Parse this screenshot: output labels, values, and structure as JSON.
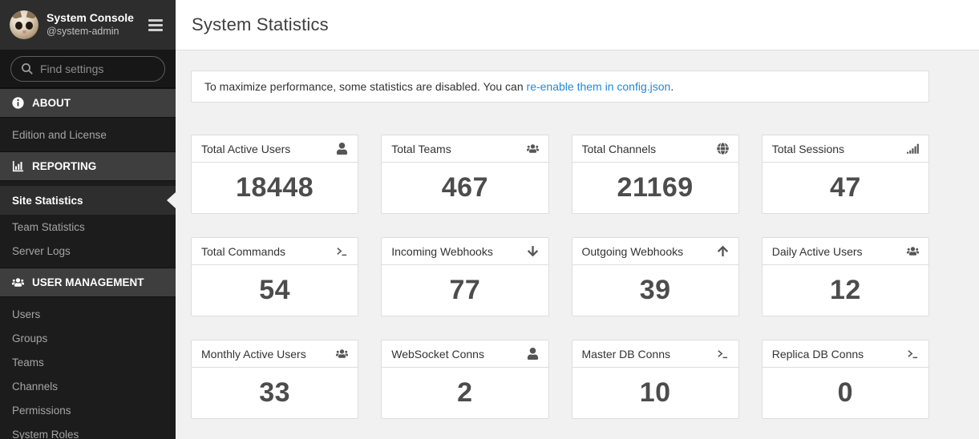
{
  "sidebar": {
    "title": "System Console",
    "subtitle": "@system-admin",
    "search_placeholder": "Find settings",
    "sections": [
      {
        "label": "ABOUT",
        "icon": "info-icon",
        "items": [
          {
            "label": "Edition and License",
            "active": false
          }
        ]
      },
      {
        "label": "REPORTING",
        "icon": "bar-chart-icon",
        "items": [
          {
            "label": "Site Statistics",
            "active": true
          },
          {
            "label": "Team Statistics",
            "active": false
          },
          {
            "label": "Server Logs",
            "active": false
          }
        ]
      },
      {
        "label": "USER MANAGEMENT",
        "icon": "users-icon",
        "items": [
          {
            "label": "Users",
            "active": false
          },
          {
            "label": "Groups",
            "active": false
          },
          {
            "label": "Teams",
            "active": false
          },
          {
            "label": "Channels",
            "active": false
          },
          {
            "label": "Permissions",
            "active": false
          },
          {
            "label": "System Roles",
            "active": false
          }
        ]
      }
    ]
  },
  "header": {
    "title": "System Statistics"
  },
  "banner": {
    "text_before_link": "To maximize performance, some statistics are disabled. You can ",
    "link_text": "re-enable them in config.json",
    "text_after_link": "."
  },
  "stats": [
    {
      "label": "Total Active Users",
      "icon": "user-icon",
      "value": "18448"
    },
    {
      "label": "Total Teams",
      "icon": "users-icon",
      "value": "467"
    },
    {
      "label": "Total Channels",
      "icon": "globe-icon",
      "value": "21169"
    },
    {
      "label": "Total Sessions",
      "icon": "signal-icon",
      "value": "47"
    },
    {
      "label": "Total Commands",
      "icon": "terminal-icon",
      "value": "54"
    },
    {
      "label": "Incoming Webhooks",
      "icon": "arrow-down-icon",
      "value": "77"
    },
    {
      "label": "Outgoing Webhooks",
      "icon": "arrow-up-icon",
      "value": "39"
    },
    {
      "label": "Daily Active Users",
      "icon": "users-icon",
      "value": "12"
    },
    {
      "label": "Monthly Active Users",
      "icon": "users-icon",
      "value": "33"
    },
    {
      "label": "WebSocket Conns",
      "icon": "user-icon",
      "value": "2"
    },
    {
      "label": "Master DB Conns",
      "icon": "terminal-icon",
      "value": "10"
    },
    {
      "label": "Replica DB Conns",
      "icon": "terminal-icon",
      "value": "0"
    }
  ],
  "colors": {
    "link": "#2389d7",
    "sidebar_bg": "#1c1c1c",
    "sidebar_header_bg": "#2d2d2d",
    "section_header_bg": "#3e3e3e",
    "active_item_bg": "#2e2e2e",
    "content_bg": "#f1f1f1",
    "card_border": "#dddddd",
    "stat_value_color": "#4c4c4c"
  }
}
